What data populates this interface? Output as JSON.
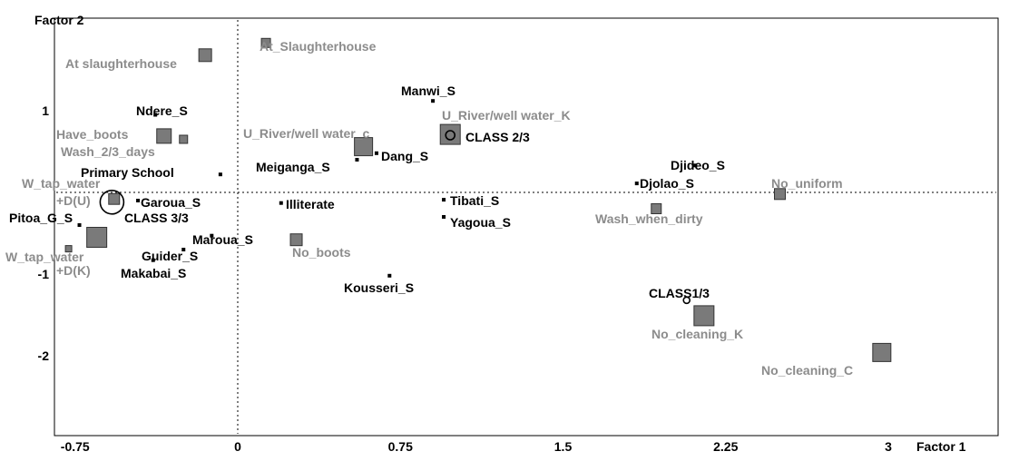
{
  "chart_data": {
    "type": "scatter",
    "title": "",
    "xlabel": "Factor 1",
    "ylabel": "Factor 2",
    "xlim": [
      -0.85,
      3.1
    ],
    "ylim": [
      -2.9,
      1.85
    ],
    "x_ticks": [
      {
        "value": -0.75,
        "label": "-0.75"
      },
      {
        "value": 0,
        "label": "0"
      },
      {
        "value": 0.75,
        "label": "0.75"
      },
      {
        "value": 1.5,
        "label": "1.5"
      },
      {
        "value": 2.25,
        "label": "2.25"
      },
      {
        "value": 3,
        "label": "3"
      }
    ],
    "y_ticks": [
      {
        "value": 1,
        "label": "1"
      },
      {
        "value": -1,
        "label": "-1"
      },
      {
        "value": -2,
        "label": "-2"
      }
    ],
    "grid": false,
    "reference_lines": "dotted lines at x = 0 and y = 0",
    "points": [
      {
        "label": "Ndere_S",
        "x": -0.38,
        "y": 0.95,
        "kind": "dot",
        "color": "#000000"
      },
      {
        "label": "Manwi_S",
        "x": 0.9,
        "y": 1.12,
        "kind": "dot",
        "color": "#000000"
      },
      {
        "label": "Primary School",
        "x": -0.08,
        "y": 0.22,
        "kind": "dot",
        "color": "#000000"
      },
      {
        "label": "Meiganga_S",
        "x": 0.55,
        "y": 0.4,
        "kind": "dot",
        "color": "#000000"
      },
      {
        "label": "Dang_S",
        "x": 0.64,
        "y": 0.48,
        "kind": "dot",
        "color": "#000000"
      },
      {
        "label": "Djideo_S",
        "x": 2.11,
        "y": 0.33,
        "kind": "dot",
        "color": "#000000"
      },
      {
        "label": "Djolao_S",
        "x": 1.84,
        "y": 0.11,
        "kind": "dot",
        "color": "#000000"
      },
      {
        "label": "Garoua_S",
        "x": -0.46,
        "y": -0.1,
        "kind": "dot",
        "color": "#000000"
      },
      {
        "label": "Illiterate",
        "x": 0.2,
        "y": -0.13,
        "kind": "dot",
        "color": "#000000"
      },
      {
        "label": "Tibati_S",
        "x": 0.95,
        "y": -0.09,
        "kind": "dot",
        "color": "#000000"
      },
      {
        "label": "Yagoua_S",
        "x": 0.95,
        "y": -0.3,
        "kind": "dot",
        "color": "#000000"
      },
      {
        "label": "Pitoa_G_S",
        "x": -0.73,
        "y": -0.4,
        "kind": "dot",
        "color": "#000000"
      },
      {
        "label": "Maroua_S",
        "x": -0.12,
        "y": -0.53,
        "kind": "dot",
        "color": "#000000"
      },
      {
        "label": "Guider_S",
        "x": -0.25,
        "y": -0.7,
        "kind": "dot",
        "color": "#000000"
      },
      {
        "label": "Makabai_S",
        "x": -0.39,
        "y": -0.83,
        "kind": "dot",
        "color": "#000000"
      },
      {
        "label": "Kousseri_S",
        "x": 0.7,
        "y": -1.02,
        "kind": "dot",
        "color": "#000000"
      },
      {
        "label": "At slaughterhouse",
        "x": -0.15,
        "y": 1.68,
        "kind": "square",
        "size": 14,
        "color": "#8c8c8c"
      },
      {
        "label": "At_Slaughterhouse",
        "x": 0.13,
        "y": 1.83,
        "kind": "square",
        "size": 10,
        "color": "#8c8c8c"
      },
      {
        "label": "Have_boots",
        "x": -0.34,
        "y": 0.69,
        "kind": "square",
        "size": 16,
        "color": "#8c8c8c"
      },
      {
        "label": "Wash_2/3_days",
        "x": -0.25,
        "y": 0.65,
        "kind": "square",
        "size": 9,
        "color": "#8c8c8c"
      },
      {
        "label": "U_River/well water_c",
        "x": 0.58,
        "y": 0.56,
        "kind": "square",
        "size": 20,
        "color": "#8c8c8c"
      },
      {
        "label": "U_River/well water_K",
        "x": 0.98,
        "y": 0.71,
        "kind": "square",
        "size": 22,
        "color": "#8c8c8c"
      },
      {
        "label": "No_uniform",
        "x": 2.5,
        "y": -0.02,
        "kind": "square",
        "size": 12,
        "color": "#8c8c8c"
      },
      {
        "label": "Wash_when_dirty",
        "x": 1.93,
        "y": -0.2,
        "kind": "square",
        "size": 11,
        "color": "#8c8c8c"
      },
      {
        "label": "No_boots",
        "x": 0.27,
        "y": -0.58,
        "kind": "square",
        "size": 13,
        "color": "#8c8c8c"
      },
      {
        "label": "W_tap_water +D(U)",
        "x": -0.57,
        "y": -0.08,
        "kind": "square",
        "size": 12,
        "color": "#8c8c8c"
      },
      {
        "label": "W_tap_water +D(K)",
        "x": -0.78,
        "y": -0.69,
        "kind": "square",
        "size": 7,
        "color": "#8c8c8c"
      },
      {
        "label": "Pitoa_G_S (square)",
        "x": -0.65,
        "y": -0.55,
        "kind": "square",
        "size": 22,
        "color": "#8c8c8c"
      },
      {
        "label": "No_cleaning_K",
        "x": 2.15,
        "y": -1.51,
        "kind": "square",
        "size": 22,
        "color": "#8c8c8c"
      },
      {
        "label": "No_cleaning_C",
        "x": 2.97,
        "y": -1.96,
        "kind": "square",
        "size": 20,
        "color": "#8c8c8c"
      },
      {
        "label": "CLASS 2/3",
        "x": 0.98,
        "y": 0.7,
        "kind": "ring",
        "size": 10,
        "color": "#000000"
      },
      {
        "label": "CLASS 3/3",
        "x": -0.58,
        "y": -0.12,
        "kind": "ring",
        "size": 26,
        "color": "#000000"
      },
      {
        "label": "CLASS1/3",
        "x": 2.07,
        "y": -1.32,
        "kind": "ring",
        "size": 7,
        "color": "#000000"
      }
    ]
  },
  "labels": [
    {
      "text": "Factor 2",
      "style": "title"
    },
    {
      "text": "Factor 1",
      "style": "title"
    },
    {
      "text": "At slaughterhouse",
      "style": "gray"
    },
    {
      "text": "At_Slaughterhouse",
      "style": "gray"
    },
    {
      "text": "Manwi_S",
      "style": "black"
    },
    {
      "text": "Ndere_S",
      "style": "black"
    },
    {
      "text": "U_River/well water_K",
      "style": "gray"
    },
    {
      "text": "Have_boots",
      "style": "gray"
    },
    {
      "text": "U_River/well water_c",
      "style": "gray"
    },
    {
      "text": "CLASS 2/3",
      "style": "black"
    },
    {
      "text": "Wash_2/3_days",
      "style": "gray"
    },
    {
      "text": "Dang_S",
      "style": "black"
    },
    {
      "text": "Meiganga_S",
      "style": "black"
    },
    {
      "text": "Djideo_S",
      "style": "black"
    },
    {
      "text": "Primary School",
      "style": "black"
    },
    {
      "text": "Djolao_S",
      "style": "black"
    },
    {
      "text": "No_uniform",
      "style": "gray"
    },
    {
      "text": "W_tap_water",
      "style": "gray"
    },
    {
      "text": "+D(U)",
      "style": "gray"
    },
    {
      "text": "Garoua_S",
      "style": "black"
    },
    {
      "text": "Illiterate",
      "style": "black"
    },
    {
      "text": "Tibati_S",
      "style": "black"
    },
    {
      "text": "Wash_when_dirty",
      "style": "gray"
    },
    {
      "text": "Pitoa_G_S",
      "style": "black"
    },
    {
      "text": "CLASS 3/3",
      "style": "black"
    },
    {
      "text": "Yagoua_S",
      "style": "black"
    },
    {
      "text": "Maroua_S",
      "style": "black"
    },
    {
      "text": "No_boots",
      "style": "gray"
    },
    {
      "text": "W_tap_water",
      "style": "gray"
    },
    {
      "text": "Guider_S",
      "style": "black"
    },
    {
      "text": "+D(K)",
      "style": "gray"
    },
    {
      "text": "Makabai_S",
      "style": "black"
    },
    {
      "text": "Kousseri_S",
      "style": "black"
    },
    {
      "text": "CLASS1/3",
      "style": "black"
    },
    {
      "text": "No_cleaning_K",
      "style": "gray"
    },
    {
      "text": "No_cleaning_C",
      "style": "gray"
    }
  ]
}
